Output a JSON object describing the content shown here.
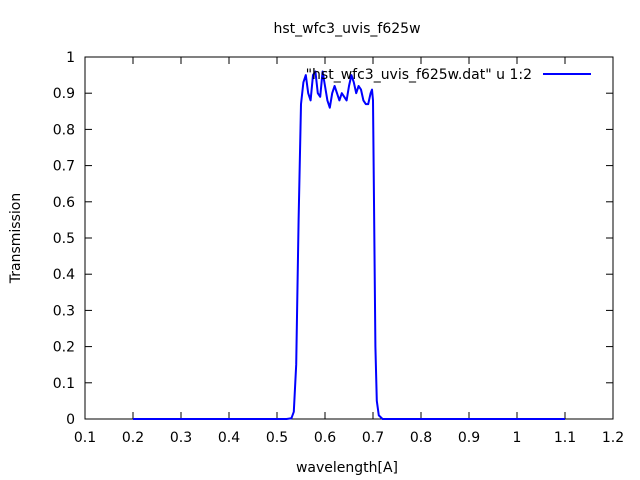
{
  "chart_data": {
    "type": "line",
    "title": "hst_wfc3_uvis_f625w",
    "xlabel": "wavelength[A]",
    "ylabel": "Transmission",
    "xlim": [
      0.1,
      1.2
    ],
    "ylim": [
      0,
      1
    ],
    "x_ticks": [
      0.1,
      0.2,
      0.3,
      0.4,
      0.5,
      0.6,
      0.7,
      0.8,
      0.9,
      1.0,
      1.1,
      1.2
    ],
    "x_tick_labels": [
      "0.1",
      "0.2",
      "0.3",
      "0.4",
      "0.5",
      "0.6",
      "0.7",
      "0.8",
      "0.9",
      "1",
      "1.1",
      "1.2"
    ],
    "y_ticks": [
      0,
      0.1,
      0.2,
      0.3,
      0.4,
      0.5,
      0.6,
      0.7,
      0.8,
      0.9,
      1.0
    ],
    "y_tick_labels": [
      "0",
      "0.1",
      "0.2",
      "0.3",
      "0.4",
      "0.5",
      "0.6",
      "0.7",
      "0.8",
      "0.9",
      "1"
    ],
    "grid": false,
    "legend_position": "top-right",
    "series": [
      {
        "name": "\"hst_wfc3_uvis_f625w.dat\" u 1:2",
        "color": "#0000ff",
        "x": [
          0.2,
          0.52,
          0.53,
          0.535,
          0.54,
          0.545,
          0.55,
          0.555,
          0.56,
          0.565,
          0.57,
          0.575,
          0.58,
          0.585,
          0.59,
          0.595,
          0.6,
          0.605,
          0.61,
          0.615,
          0.62,
          0.625,
          0.63,
          0.635,
          0.64,
          0.645,
          0.65,
          0.655,
          0.66,
          0.665,
          0.67,
          0.675,
          0.68,
          0.685,
          0.69,
          0.695,
          0.698,
          0.7,
          0.702,
          0.705,
          0.708,
          0.712,
          0.72,
          1.1
        ],
        "y": [
          0.0,
          0.0,
          0.002,
          0.02,
          0.15,
          0.55,
          0.87,
          0.93,
          0.95,
          0.9,
          0.88,
          0.95,
          0.96,
          0.9,
          0.89,
          0.96,
          0.92,
          0.88,
          0.86,
          0.9,
          0.92,
          0.9,
          0.88,
          0.9,
          0.89,
          0.88,
          0.92,
          0.95,
          0.93,
          0.9,
          0.92,
          0.91,
          0.88,
          0.87,
          0.87,
          0.9,
          0.91,
          0.88,
          0.6,
          0.2,
          0.05,
          0.01,
          0.0,
          0.0
        ]
      }
    ]
  }
}
